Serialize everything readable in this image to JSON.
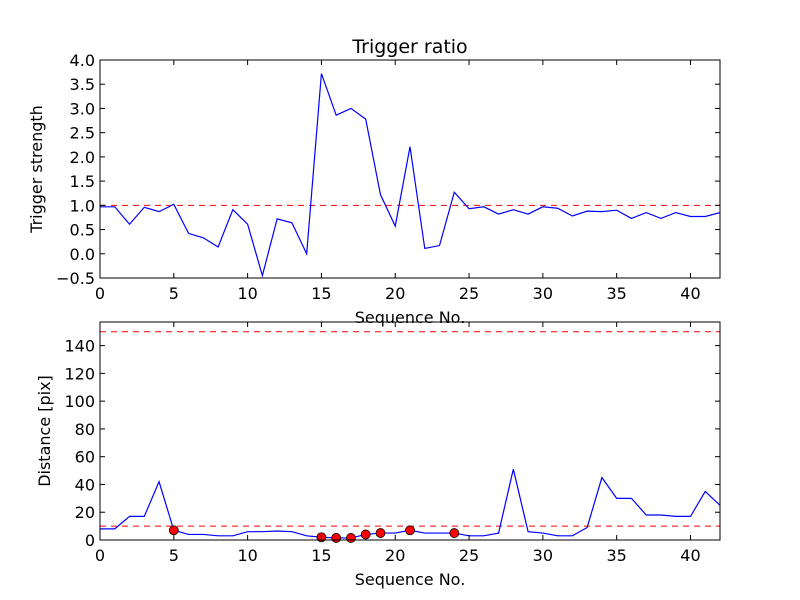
{
  "chart_data": [
    {
      "type": "line",
      "title": "Trigger ratio",
      "xlabel": "Sequence No.",
      "ylabel": "Trigger strength",
      "xlim": [
        0,
        42
      ],
      "ylim": [
        -0.5,
        4.0
      ],
      "xticks": [
        0,
        5,
        10,
        15,
        20,
        25,
        30,
        35,
        40
      ],
      "yticks": [
        -0.5,
        0.0,
        0.5,
        1.0,
        1.5,
        2.0,
        2.5,
        3.0,
        3.5,
        4.0
      ],
      "ytick_labels": [
        "−0.5",
        "0.0",
        "0.5",
        "1.0",
        "1.5",
        "2.0",
        "2.5",
        "3.0",
        "3.5",
        "4.0"
      ],
      "grid": false,
      "line_color": "#0000ff",
      "x": [
        0,
        1,
        2,
        3,
        4,
        5,
        6,
        7,
        8,
        9,
        10,
        11,
        12,
        13,
        14,
        15,
        16,
        17,
        18,
        19,
        20,
        21,
        22,
        23,
        24,
        25,
        26,
        27,
        28,
        29,
        30,
        31,
        32,
        33,
        34,
        35,
        36,
        37,
        38,
        39,
        40,
        41,
        42
      ],
      "values": [
        0.97,
        0.97,
        0.61,
        0.96,
        0.87,
        1.02,
        0.42,
        0.33,
        0.14,
        0.91,
        0.61,
        -0.45,
        0.72,
        0.64,
        0.0,
        3.72,
        2.86,
        3.0,
        2.78,
        1.22,
        0.57,
        2.21,
        0.11,
        0.17,
        1.27,
        0.93,
        0.97,
        0.82,
        0.91,
        0.82,
        0.97,
        0.94,
        0.78,
        0.88,
        0.87,
        0.9,
        0.73,
        0.85,
        0.73,
        0.85,
        0.77,
        0.77,
        0.85
      ],
      "threshold_lines": [
        {
          "y": 1.0,
          "color": "#ff0000",
          "style": "dashed"
        }
      ]
    },
    {
      "type": "line",
      "xlabel": "Sequence No.",
      "ylabel": "Distance [pix]",
      "xlim": [
        0,
        42
      ],
      "ylim": [
        0,
        157
      ],
      "xticks": [
        0,
        5,
        10,
        15,
        20,
        25,
        30,
        35,
        40
      ],
      "yticks": [
        0,
        20,
        40,
        60,
        80,
        100,
        120,
        140
      ],
      "grid": false,
      "line_color": "#0000ff",
      "marker_color": "#ff0000",
      "x": [
        0,
        1,
        2,
        3,
        4,
        5,
        6,
        7,
        8,
        9,
        10,
        11,
        12,
        13,
        14,
        15,
        16,
        17,
        18,
        19,
        20,
        21,
        22,
        23,
        24,
        25,
        26,
        27,
        28,
        29,
        30,
        31,
        32,
        33,
        34,
        35,
        36,
        37,
        38,
        39,
        40,
        41,
        42
      ],
      "values": [
        8,
        8,
        17,
        17,
        42,
        7,
        4,
        4,
        3,
        3,
        6,
        6,
        6.5,
        6,
        3,
        2,
        1.5,
        1.5,
        4,
        5,
        5,
        7,
        5,
        5,
        5,
        3,
        3,
        5,
        51,
        6,
        5,
        3,
        3,
        9,
        45,
        30,
        30,
        18,
        18,
        17,
        17,
        35,
        25
      ],
      "markers": [
        {
          "x": 5,
          "y": 7
        },
        {
          "x": 15,
          "y": 2
        },
        {
          "x": 16,
          "y": 1.5
        },
        {
          "x": 17,
          "y": 1.5
        },
        {
          "x": 18,
          "y": 4
        },
        {
          "x": 19,
          "y": 5
        },
        {
          "x": 21,
          "y": 7
        },
        {
          "x": 24,
          "y": 5
        }
      ],
      "threshold_lines": [
        {
          "y": 150,
          "color": "#ff0000",
          "style": "dashed"
        },
        {
          "y": 10,
          "color": "#ff0000",
          "style": "dashed"
        }
      ]
    }
  ]
}
